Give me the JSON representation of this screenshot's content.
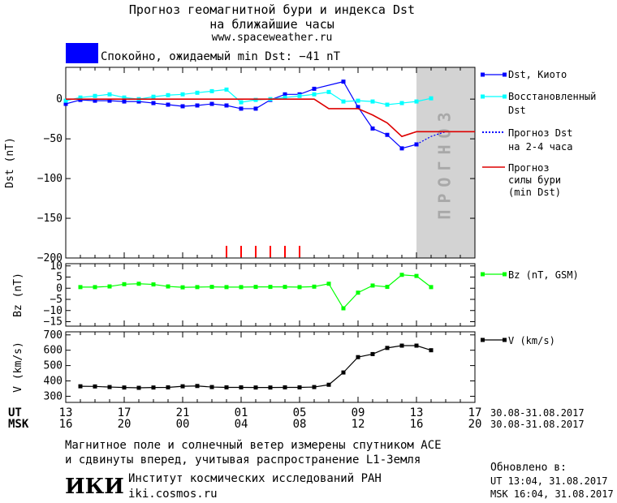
{
  "header": {
    "title_line1": "Прогноз геомагнитной бури и индекса Dst",
    "title_line2": "на ближайшие часы",
    "url": "www.spaceweather.ru",
    "status_text": "Спокойно, ожидаемый min Dst: −41 nT",
    "status_color": "#0000ff"
  },
  "forecast_band_label": "ПРОГНОЗ",
  "legend": {
    "dst_kyoto": "Dst, Киото",
    "restored_1": "Восстановленный",
    "restored_2": "Dst",
    "forecast_1": "Прогноз Dst",
    "forecast_2": "на 2-4 часа",
    "storm_1": "Прогноз",
    "storm_2": "силы бури",
    "storm_3": "(min Dst)",
    "bz": "Bz (nT, GSM)",
    "v": "V (km/s)"
  },
  "time_axis": {
    "ut_label": "UT",
    "msk_label": "MSK",
    "ut_ticks": [
      "13",
      "17",
      "21",
      "01",
      "05",
      "09",
      "13",
      "17"
    ],
    "msk_ticks": [
      "16",
      "20",
      "00",
      "04",
      "08",
      "12",
      "16",
      "20"
    ],
    "date_range_ut": "30.08-31.08.2017",
    "date_range_msk": "30.08-31.08.2017"
  },
  "footer": {
    "line1": "Магнитное поле и солнечный ветер измерены спутником ACE",
    "line2": "и сдвинуты вперед, учитывая распространение L1-Земля",
    "institute": "Институт космических исследований РАН",
    "institute_url": "iki.cosmos.ru",
    "logo_text": "ИКИ",
    "updated_label": "Обновлено в:",
    "updated_ut": "UT  13:04, 31.08.2017",
    "updated_msk": "MSK 16:04, 31.08.2017"
  },
  "chart_data": [
    {
      "type": "line",
      "ylabel": "Dst (nT)",
      "ylim": [
        -200,
        40
      ],
      "yticks": [
        0,
        -50,
        -100,
        -150,
        -200
      ],
      "xlim": [
        0,
        28
      ],
      "forecast_start": 24,
      "series": [
        {
          "name": "Dst, Киото",
          "color": "#0000ff",
          "x": [
            0,
            1,
            2,
            3,
            4,
            5,
            6,
            7,
            8,
            9,
            10,
            11,
            12,
            13,
            14,
            15,
            16,
            17,
            19,
            20,
            21,
            22,
            23,
            24
          ],
          "y": [
            -6,
            -1,
            -2,
            -2,
            -3,
            -3,
            -5,
            -7,
            -9,
            -8,
            -6,
            -8,
            -12,
            -12,
            -1,
            6,
            6,
            13,
            22,
            -10,
            -37,
            -45,
            -62,
            -57
          ]
        },
        {
          "name": "Восстановленный Dst",
          "color": "#00ffff",
          "x": [
            0,
            1,
            2,
            3,
            4,
            5,
            6,
            7,
            8,
            9,
            10,
            11,
            12,
            13,
            14,
            15,
            16,
            17,
            18,
            19,
            20,
            21,
            22,
            23,
            24,
            25
          ],
          "y": [
            -2,
            2,
            4,
            6,
            2,
            0,
            3,
            5,
            6,
            8,
            10,
            12,
            -4,
            -1,
            0,
            2,
            4,
            6,
            9,
            -3,
            -2,
            -3,
            -7,
            -5,
            -3,
            1
          ]
        },
        {
          "name": "Прогноз Dst на 2-4 часа",
          "color": "#0000ff",
          "dashed": true,
          "x": [
            24,
            25,
            26,
            27,
            28
          ],
          "y": [
            -57,
            -47,
            -41,
            -41,
            -41
          ]
        },
        {
          "name": "Прогноз силы бури (min Dst)",
          "color": "#dd0000",
          "x": [
            0,
            17,
            18,
            20,
            21,
            22,
            23,
            24,
            28
          ],
          "y": [
            0,
            0,
            -12,
            -12,
            -20,
            -30,
            -47,
            -41,
            -41
          ]
        }
      ],
      "storm_markers_x": [
        11,
        12,
        13,
        14,
        15,
        16
      ]
    },
    {
      "type": "line",
      "ylabel": "Bz (nT)",
      "ylim": [
        -17,
        11
      ],
      "yticks": [
        10,
        5,
        0,
        -5,
        -10,
        -15
      ],
      "series": [
        {
          "name": "Bz (nT, GSM)",
          "color": "#00ff00",
          "x": [
            1,
            2,
            3,
            4,
            5,
            6,
            7,
            8,
            9,
            10,
            11,
            12,
            13,
            14,
            15,
            16,
            17,
            18,
            19,
            20,
            21,
            22,
            23,
            24,
            25
          ],
          "y": [
            0.5,
            0.5,
            0.8,
            1.8,
            2,
            1.7,
            0.8,
            0.4,
            0.5,
            0.6,
            0.5,
            0.5,
            0.6,
            0.6,
            0.6,
            0.5,
            0.7,
            2,
            -9,
            -2,
            1.2,
            0.6,
            6,
            5.5,
            0.5
          ]
        }
      ]
    },
    {
      "type": "line",
      "ylabel": "V (km/s)",
      "ylim": [
        260,
        720
      ],
      "yticks": [
        700,
        600,
        500,
        400,
        300
      ],
      "series": [
        {
          "name": "V (km/s)",
          "color": "#000000",
          "x": [
            1,
            2,
            3,
            4,
            5,
            6,
            7,
            8,
            9,
            10,
            11,
            12,
            13,
            14,
            15,
            16,
            17,
            18,
            19,
            20,
            21,
            22,
            23,
            24,
            25
          ],
          "y": [
            365,
            364,
            360,
            357,
            355,
            357,
            358,
            365,
            367,
            360,
            358,
            358,
            357,
            357,
            358,
            358,
            360,
            375,
            455,
            555,
            575,
            615,
            630,
            630,
            600
          ]
        }
      ]
    }
  ]
}
